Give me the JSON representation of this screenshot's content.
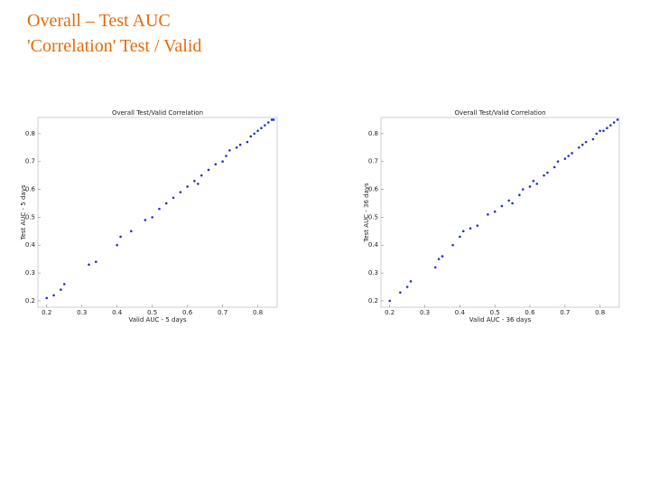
{
  "header": {
    "line1": "Overall – Test AUC",
    "line2": "'Correlation' Test / Valid"
  },
  "chart_data": [
    {
      "type": "scatter",
      "title": "Overall Test/Valid Correlation",
      "x_label": "Valid AUC - 5 days",
      "y_label": "Test AUC - 5 days",
      "color": "#2233cc",
      "x": [
        0.2,
        0.22,
        0.24,
        0.25,
        0.32,
        0.34,
        0.4,
        0.41,
        0.44,
        0.48,
        0.5,
        0.52,
        0.54,
        0.56,
        0.58,
        0.6,
        0.62,
        0.63,
        0.64,
        0.66,
        0.68,
        0.7,
        0.71,
        0.72,
        0.74,
        0.75,
        0.77,
        0.78,
        0.79,
        0.8,
        0.81,
        0.82,
        0.83,
        0.84,
        0.845
      ],
      "values": [
        0.21,
        0.22,
        0.24,
        0.26,
        0.33,
        0.34,
        0.4,
        0.43,
        0.45,
        0.49,
        0.5,
        0.53,
        0.55,
        0.57,
        0.59,
        0.61,
        0.63,
        0.62,
        0.65,
        0.67,
        0.69,
        0.7,
        0.72,
        0.74,
        0.75,
        0.76,
        0.77,
        0.79,
        0.8,
        0.81,
        0.82,
        0.83,
        0.84,
        0.85,
        0.85
      ],
      "xlim": [
        0.175,
        0.855
      ],
      "ylim": [
        0.177,
        0.858
      ],
      "xticks": [
        0.2,
        0.3,
        0.4,
        0.5,
        0.6,
        0.7,
        0.8
      ],
      "yticks": [
        0.2,
        0.3,
        0.4,
        0.5,
        0.6,
        0.7,
        0.8
      ]
    },
    {
      "type": "scatter",
      "title": "Overall Test/Valid Correlation",
      "x_label": "Valid AUC - 36 days",
      "y_label": "Test AUC - 36 days",
      "color": "#2233cc",
      "x": [
        0.2,
        0.23,
        0.25,
        0.26,
        0.33,
        0.34,
        0.35,
        0.38,
        0.4,
        0.41,
        0.43,
        0.45,
        0.48,
        0.5,
        0.52,
        0.54,
        0.55,
        0.57,
        0.58,
        0.6,
        0.61,
        0.62,
        0.64,
        0.65,
        0.67,
        0.68,
        0.7,
        0.71,
        0.72,
        0.74,
        0.75,
        0.76,
        0.78,
        0.79,
        0.8,
        0.81,
        0.82,
        0.83,
        0.84,
        0.85
      ],
      "values": [
        0.2,
        0.23,
        0.25,
        0.27,
        0.32,
        0.35,
        0.36,
        0.4,
        0.43,
        0.45,
        0.46,
        0.47,
        0.51,
        0.52,
        0.54,
        0.56,
        0.55,
        0.58,
        0.6,
        0.61,
        0.63,
        0.62,
        0.65,
        0.66,
        0.68,
        0.7,
        0.71,
        0.72,
        0.73,
        0.75,
        0.76,
        0.77,
        0.78,
        0.8,
        0.81,
        0.81,
        0.82,
        0.83,
        0.84,
        0.85
      ],
      "xlim": [
        0.175,
        0.855
      ],
      "ylim": [
        0.177,
        0.858
      ],
      "xticks": [
        0.2,
        0.3,
        0.4,
        0.5,
        0.6,
        0.7,
        0.8
      ],
      "yticks": [
        0.2,
        0.3,
        0.4,
        0.5,
        0.6,
        0.7,
        0.8
      ]
    }
  ]
}
